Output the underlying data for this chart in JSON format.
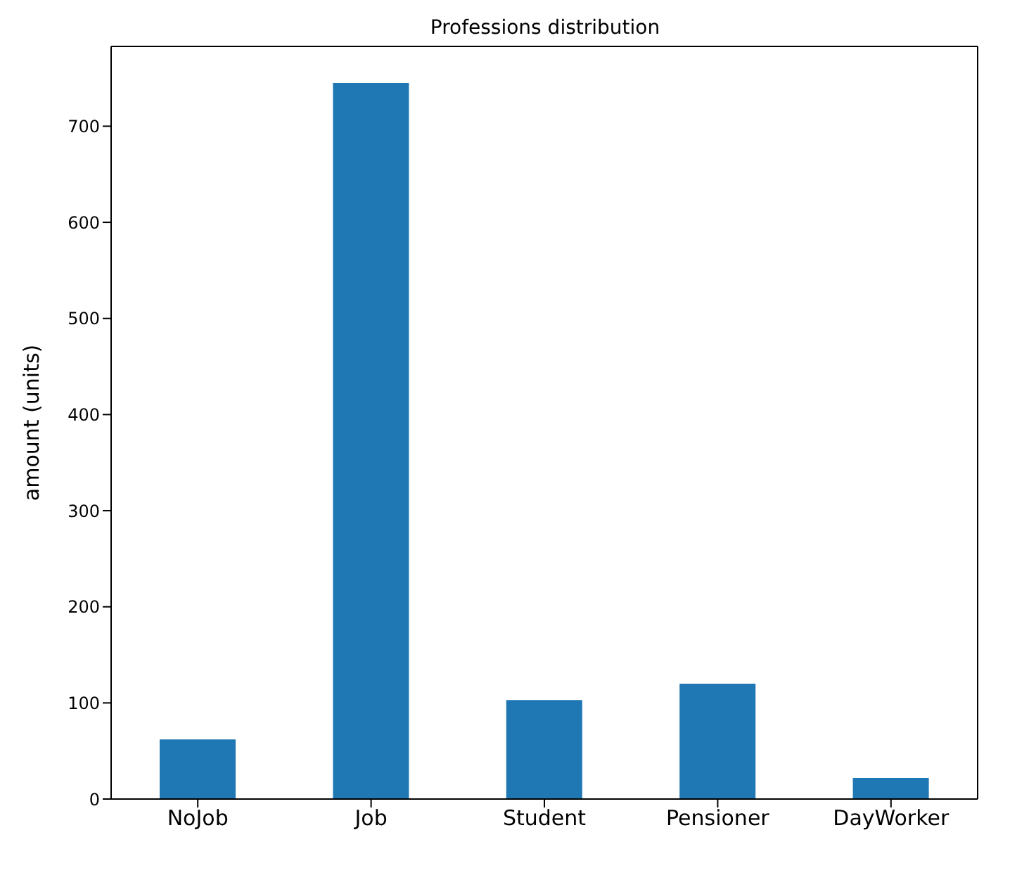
{
  "chart_data": {
    "type": "bar",
    "title": "Professions distribution",
    "ylabel": "amount (units)",
    "categories": [
      "NoJob",
      "Job",
      "Student",
      "Pensioner",
      "DayWorker"
    ],
    "values": [
      62,
      745,
      103,
      120,
      22
    ],
    "color": "#1f77b4",
    "ylim": [
      0,
      783
    ],
    "yticks": [
      0,
      100,
      200,
      300,
      400,
      500,
      600,
      700
    ],
    "grid": false,
    "legend": false
  }
}
